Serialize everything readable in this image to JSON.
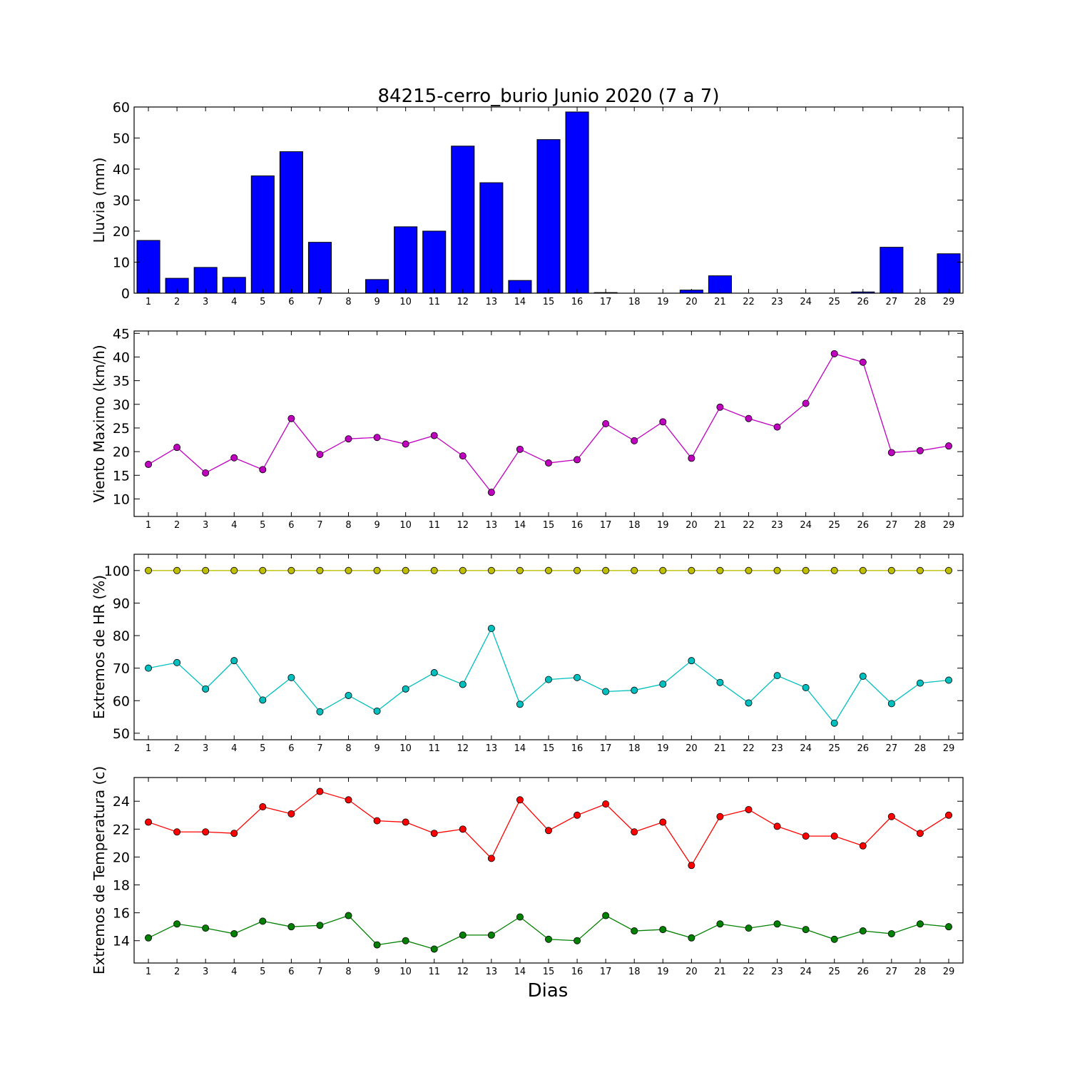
{
  "figure": {
    "title": "84215-cerro_burio Junio 2020  (7 a 7)",
    "xlabel": "Dias"
  },
  "chart_data": [
    {
      "type": "bar",
      "title": "84215-cerro_burio Junio 2020  (7 a 7)",
      "xlabel": "",
      "ylabel": "Lluvia (mm)",
      "categories": [
        "1",
        "2",
        "3",
        "4",
        "5",
        "6",
        "7",
        "8",
        "9",
        "10",
        "11",
        "12",
        "13",
        "14",
        "15",
        "16",
        "17",
        "18",
        "19",
        "20",
        "21",
        "22",
        "23",
        "24",
        "25",
        "26",
        "27",
        "28",
        "29"
      ],
      "values": [
        17.0,
        4.8,
        8.3,
        5.1,
        37.8,
        45.6,
        16.4,
        0.0,
        4.4,
        21.4,
        20.0,
        47.4,
        35.6,
        4.1,
        49.5,
        58.4,
        0.2,
        0.0,
        0.0,
        1.0,
        5.6,
        0.0,
        0.0,
        0.0,
        0.0,
        0.4,
        14.8,
        0.0,
        12.7
      ],
      "ylim": [
        0,
        60
      ],
      "yticks": [
        0,
        10,
        20,
        30,
        40,
        50,
        60
      ],
      "color": "#0000ff",
      "grid": false
    },
    {
      "type": "line",
      "ylabel": "Viento Maximo (km/h)",
      "categories": [
        "1",
        "2",
        "3",
        "4",
        "5",
        "6",
        "7",
        "8",
        "9",
        "10",
        "11",
        "12",
        "13",
        "14",
        "15",
        "16",
        "17",
        "18",
        "19",
        "20",
        "21",
        "22",
        "23",
        "24",
        "25",
        "26",
        "27",
        "28",
        "29"
      ],
      "series": [
        {
          "values": [
            17.3,
            20.9,
            15.5,
            18.7,
            16.2,
            27.0,
            19.4,
            22.7,
            23.0,
            21.6,
            23.4,
            19.1,
            11.4,
            20.5,
            17.6,
            18.3,
            25.9,
            22.3,
            26.3,
            18.6,
            29.4,
            27.0,
            25.2,
            30.2,
            40.7,
            38.9,
            19.8,
            20.2,
            21.2
          ],
          "color": "#bf00bf"
        }
      ],
      "ylim": [
        6.3,
        45.5
      ],
      "yticks": [
        10,
        15,
        20,
        25,
        30,
        35,
        40,
        45
      ],
      "grid": false
    },
    {
      "type": "line",
      "ylabel": "Extremos de HR (%)",
      "categories": [
        "1",
        "2",
        "3",
        "4",
        "5",
        "6",
        "7",
        "8",
        "9",
        "10",
        "11",
        "12",
        "13",
        "14",
        "15",
        "16",
        "17",
        "18",
        "19",
        "20",
        "21",
        "22",
        "23",
        "24",
        "25",
        "26",
        "27",
        "28",
        "29"
      ],
      "series": [
        {
          "values": [
            100,
            100,
            100,
            100,
            100,
            100,
            100,
            100,
            100,
            100,
            100,
            100,
            100,
            100,
            100,
            100,
            100,
            100,
            100,
            100,
            100,
            100,
            100,
            100,
            100,
            100,
            100,
            100,
            100
          ],
          "color": "#bfbf00"
        },
        {
          "values": [
            70.0,
            71.7,
            63.6,
            72.3,
            60.2,
            67.1,
            56.6,
            61.6,
            56.8,
            63.6,
            68.6,
            65.0,
            82.2,
            58.9,
            66.5,
            67.1,
            62.8,
            63.2,
            65.1,
            72.3,
            65.6,
            59.3,
            67.7,
            64.0,
            53.1,
            67.5,
            59.1,
            65.4,
            66.3
          ],
          "color": "#00bfbf"
        }
      ],
      "ylim": [
        48,
        105
      ],
      "yticks": [
        50,
        60,
        70,
        80,
        90,
        100
      ],
      "grid": false
    },
    {
      "type": "line",
      "xlabel": "Dias",
      "ylabel": "Extremos de Temperatura (c)",
      "categories": [
        "1",
        "2",
        "3",
        "4",
        "5",
        "6",
        "7",
        "8",
        "9",
        "10",
        "11",
        "12",
        "13",
        "14",
        "15",
        "16",
        "17",
        "18",
        "19",
        "20",
        "21",
        "22",
        "23",
        "24",
        "25",
        "26",
        "27",
        "28",
        "29"
      ],
      "series": [
        {
          "values": [
            22.5,
            21.8,
            21.8,
            21.7,
            23.6,
            23.1,
            24.7,
            24.1,
            22.6,
            22.5,
            21.7,
            22.0,
            19.9,
            24.1,
            21.9,
            23.0,
            23.8,
            21.8,
            22.5,
            19.4,
            22.9,
            23.4,
            22.2,
            21.5,
            21.5,
            20.8,
            22.9,
            21.7,
            23.0
          ],
          "color": "#ff0000"
        },
        {
          "values": [
            14.2,
            15.2,
            14.9,
            14.5,
            15.4,
            15.0,
            15.1,
            15.8,
            13.7,
            14.0,
            13.4,
            14.4,
            14.4,
            15.7,
            14.1,
            14.0,
            15.8,
            14.7,
            14.8,
            14.2,
            15.2,
            14.9,
            15.2,
            14.8,
            14.1,
            14.7,
            14.5,
            15.2,
            15.0
          ],
          "color": "#008000"
        }
      ],
      "ylim": [
        12.4,
        25.7
      ],
      "yticks": [
        14,
        16,
        18,
        20,
        22,
        24
      ],
      "grid": false
    }
  ]
}
